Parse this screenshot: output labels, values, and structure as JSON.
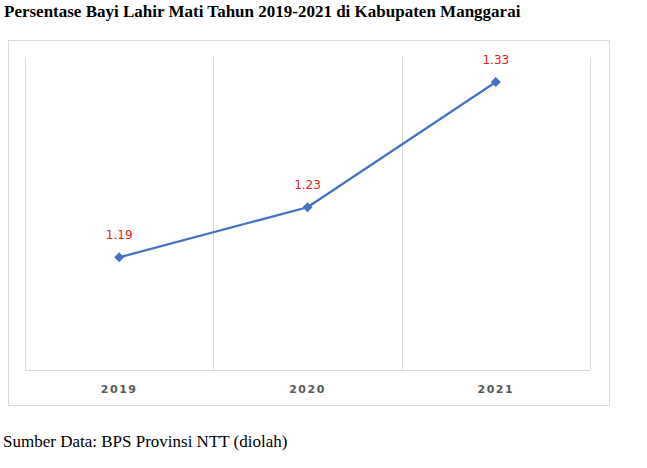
{
  "chart_data": {
    "type": "line",
    "title": "Persentase Bayi Lahir Mati Tahun 2019-2021 di Kabupaten Manggarai",
    "source": "Sumber Data: BPS Provinsi NTT (diolah)",
    "categories": [
      "2019",
      "2020",
      "2021"
    ],
    "values": [
      1.19,
      1.23,
      1.33
    ],
    "color": "#4472c4",
    "marker": "diamond",
    "ylim": [
      1.1,
      1.35
    ],
    "grid": true,
    "data_labels": true,
    "tick_labels": "x"
  }
}
